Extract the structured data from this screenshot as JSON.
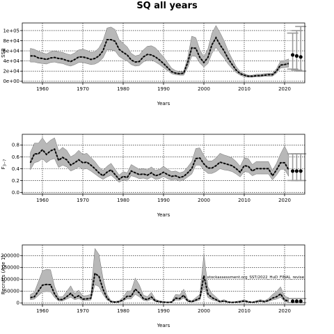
{
  "figure": {
    "title": "SQ all years"
  },
  "chart_data": [
    {
      "type": "line",
      "name": "ssb-panel",
      "xlabel": "Years",
      "ylabel": "SSB",
      "xlim": [
        1955,
        2025
      ],
      "ylim": [
        -3000,
        115000
      ],
      "x_ticks": [
        1960,
        1970,
        1980,
        1990,
        2000,
        2010,
        2020
      ],
      "y_ticks": [
        0,
        20000,
        40000,
        60000,
        80000,
        100000
      ],
      "y_tick_labels": [
        "0e+00",
        "2e+04",
        "4e+04",
        "6e+04",
        "8e+04",
        "1e+05"
      ],
      "grid": true,
      "x": [
        1957,
        1958,
        1959,
        1960,
        1961,
        1962,
        1963,
        1964,
        1965,
        1966,
        1967,
        1968,
        1969,
        1970,
        1971,
        1972,
        1973,
        1974,
        1975,
        1976,
        1977,
        1978,
        1979,
        1980,
        1981,
        1982,
        1983,
        1984,
        1985,
        1986,
        1987,
        1988,
        1989,
        1990,
        1991,
        1992,
        1993,
        1994,
        1995,
        1996,
        1997,
        1998,
        1999,
        2000,
        2001,
        2002,
        2003,
        2004,
        2005,
        2006,
        2007,
        2008,
        2009,
        2010,
        2011,
        2012,
        2013,
        2014,
        2015,
        2016,
        2017,
        2018,
        2019,
        2020,
        2021
      ],
      "median": [
        50000,
        50000,
        46000,
        45000,
        43000,
        46000,
        47000,
        45000,
        44000,
        41000,
        39000,
        43000,
        48000,
        48000,
        46000,
        43000,
        45000,
        50000,
        60000,
        82000,
        82000,
        79000,
        63000,
        57000,
        52000,
        42000,
        38000,
        39000,
        48000,
        53000,
        52000,
        48000,
        42000,
        35000,
        27000,
        19000,
        16000,
        15000,
        16000,
        37000,
        66000,
        65000,
        47000,
        37000,
        47000,
        72000,
        86000,
        72000,
        60000,
        45000,
        33000,
        22000,
        15000,
        12000,
        10000,
        10000,
        11000,
        11000,
        12000,
        13000,
        13000,
        20000,
        32000,
        33000,
        35000
      ],
      "lower": [
        38000,
        38000,
        36000,
        35000,
        34000,
        37000,
        38000,
        36000,
        35000,
        32000,
        30000,
        33000,
        37000,
        37000,
        35000,
        33000,
        34000,
        38000,
        46000,
        62000,
        62000,
        60000,
        49000,
        44000,
        40000,
        33000,
        30000,
        31000,
        38000,
        42000,
        42000,
        38000,
        33000,
        27000,
        21000,
        15000,
        13000,
        12000,
        12000,
        27000,
        50000,
        49000,
        36000,
        28000,
        35000,
        55000,
        67000,
        56000,
        46000,
        34000,
        25000,
        17000,
        12000,
        9000,
        8000,
        8000,
        9000,
        9000,
        10000,
        10000,
        10000,
        16000,
        26000,
        27000,
        28000
      ],
      "upper": [
        65000,
        63000,
        59000,
        56000,
        54000,
        58000,
        60000,
        58000,
        57000,
        54000,
        52000,
        56000,
        62000,
        63000,
        61000,
        57000,
        58000,
        66000,
        80000,
        105000,
        107000,
        102000,
        82000,
        75000,
        68000,
        55000,
        50000,
        52000,
        62000,
        69000,
        70000,
        66000,
        57000,
        48000,
        37000,
        26000,
        21000,
        19000,
        20000,
        47000,
        89000,
        86000,
        62000,
        48000,
        64000,
        95000,
        110000,
        96000,
        80000,
        60000,
        44000,
        29000,
        19000,
        15000,
        12000,
        12000,
        14000,
        14000,
        15000,
        16000,
        16000,
        25000,
        40000,
        41000,
        44000
      ],
      "projection": {
        "x": [
          2022,
          2023,
          2024
        ],
        "median": [
          52000,
          50000,
          48000
        ],
        "lower": [
          24000,
          22000,
          20000
        ],
        "upper": [
          95000,
          100000,
          108000
        ]
      }
    },
    {
      "type": "line",
      "name": "f-panel",
      "xlabel": "Years",
      "ylabel": "F3-7",
      "ylabel_base": "F",
      "ylabel_sub": "3−7",
      "xlim": [
        1955,
        2025
      ],
      "ylim": [
        -0.03,
        0.98
      ],
      "x_ticks": [
        1960,
        1970,
        1980,
        1990,
        2000,
        2010,
        2020
      ],
      "y_ticks": [
        0.0,
        0.2,
        0.4,
        0.6,
        0.8
      ],
      "y_tick_labels": [
        "0.0",
        "0.2",
        "0.4",
        "0.6",
        "0.8"
      ],
      "grid": true,
      "x": [
        1957,
        1958,
        1959,
        1960,
        1961,
        1962,
        1963,
        1964,
        1965,
        1966,
        1967,
        1968,
        1969,
        1970,
        1971,
        1972,
        1973,
        1974,
        1975,
        1976,
        1977,
        1978,
        1979,
        1980,
        1981,
        1982,
        1983,
        1984,
        1985,
        1986,
        1987,
        1988,
        1989,
        1990,
        1991,
        1992,
        1993,
        1994,
        1995,
        1996,
        1997,
        1998,
        1999,
        2000,
        2001,
        2002,
        2003,
        2004,
        2005,
        2006,
        2007,
        2008,
        2009,
        2010,
        2011,
        2012,
        2013,
        2014,
        2015,
        2016,
        2017,
        2018,
        2019,
        2020,
        2021
      ],
      "median": [
        0.5,
        0.65,
        0.65,
        0.72,
        0.64,
        0.7,
        0.73,
        0.54,
        0.59,
        0.55,
        0.46,
        0.5,
        0.55,
        0.5,
        0.51,
        0.46,
        0.4,
        0.33,
        0.28,
        0.34,
        0.38,
        0.3,
        0.22,
        0.27,
        0.25,
        0.36,
        0.33,
        0.3,
        0.31,
        0.29,
        0.33,
        0.28,
        0.3,
        0.34,
        0.3,
        0.27,
        0.28,
        0.25,
        0.27,
        0.33,
        0.4,
        0.57,
        0.58,
        0.48,
        0.41,
        0.41,
        0.45,
        0.51,
        0.49,
        0.47,
        0.45,
        0.4,
        0.34,
        0.45,
        0.44,
        0.36,
        0.4,
        0.4,
        0.4,
        0.4,
        0.28,
        0.38,
        0.5,
        0.5,
        0.38
      ],
      "lower": [
        0.38,
        0.5,
        0.52,
        0.57,
        0.5,
        0.55,
        0.57,
        0.42,
        0.46,
        0.43,
        0.36,
        0.39,
        0.43,
        0.39,
        0.4,
        0.36,
        0.31,
        0.26,
        0.22,
        0.26,
        0.29,
        0.23,
        0.17,
        0.21,
        0.19,
        0.28,
        0.26,
        0.23,
        0.24,
        0.22,
        0.26,
        0.22,
        0.23,
        0.27,
        0.23,
        0.21,
        0.22,
        0.19,
        0.21,
        0.26,
        0.31,
        0.46,
        0.46,
        0.38,
        0.32,
        0.32,
        0.35,
        0.4,
        0.38,
        0.37,
        0.35,
        0.31,
        0.26,
        0.35,
        0.34,
        0.28,
        0.31,
        0.31,
        0.31,
        0.31,
        0.21,
        0.29,
        0.39,
        0.39,
        0.27
      ],
      "upper": [
        0.67,
        0.83,
        0.83,
        0.92,
        0.82,
        0.88,
        0.92,
        0.7,
        0.76,
        0.71,
        0.6,
        0.64,
        0.71,
        0.64,
        0.66,
        0.59,
        0.52,
        0.43,
        0.37,
        0.44,
        0.49,
        0.39,
        0.29,
        0.35,
        0.33,
        0.47,
        0.43,
        0.39,
        0.4,
        0.38,
        0.43,
        0.37,
        0.39,
        0.44,
        0.39,
        0.35,
        0.36,
        0.33,
        0.35,
        0.43,
        0.52,
        0.74,
        0.75,
        0.62,
        0.53,
        0.53,
        0.58,
        0.66,
        0.63,
        0.61,
        0.58,
        0.52,
        0.44,
        0.58,
        0.57,
        0.47,
        0.52,
        0.52,
        0.52,
        0.52,
        0.37,
        0.49,
        0.65,
        0.78,
        0.64
      ],
      "projection": {
        "x": [
          2022,
          2023,
          2024
        ],
        "median": [
          0.36,
          0.36,
          0.36
        ],
        "lower": [
          0.2,
          0.2,
          0.2
        ],
        "upper": [
          0.65,
          0.65,
          0.65
        ]
      }
    },
    {
      "type": "line",
      "name": "recruitment-panel",
      "xlabel": "Years",
      "ylabel": "Recruits (Age 1)",
      "xlim": [
        1955,
        2025
      ],
      "ylim": [
        -8000,
        245000
      ],
      "x_ticks": [
        1960,
        1970,
        1980,
        1990,
        2000,
        2010,
        2020
      ],
      "y_ticks": [
        0,
        50000,
        100000,
        150000,
        200000
      ],
      "y_tick_labels": [
        "0",
        "50000",
        "100000",
        "150000",
        "200000"
      ],
      "grid": true,
      "annotation": "stockassessment.org_SST/2022_HuD_FINAL_revise",
      "x": [
        1957,
        1958,
        1959,
        1960,
        1961,
        1962,
        1963,
        1964,
        1965,
        1966,
        1967,
        1968,
        1969,
        1970,
        1971,
        1972,
        1973,
        1974,
        1975,
        1976,
        1977,
        1978,
        1979,
        1980,
        1981,
        1982,
        1983,
        1984,
        1985,
        1986,
        1987,
        1988,
        1989,
        1990,
        1991,
        1992,
        1993,
        1994,
        1995,
        1996,
        1997,
        1998,
        1999,
        2000,
        2001,
        2002,
        2003,
        2004,
        2005,
        2006,
        2007,
        2008,
        2009,
        2010,
        2011,
        2012,
        2013,
        2014,
        2015,
        2016,
        2017,
        2018,
        2019,
        2020,
        2021
      ],
      "median": [
        22000,
        26000,
        50000,
        75000,
        78000,
        77000,
        38000,
        14000,
        14000,
        26000,
        40000,
        22000,
        30000,
        16000,
        17000,
        20000,
        125000,
        112000,
        58000,
        20000,
        5000,
        3000,
        5000,
        13000,
        28000,
        28000,
        58000,
        42000,
        18000,
        14000,
        25000,
        8000,
        5000,
        3000,
        2000,
        3000,
        20000,
        18000,
        32000,
        8000,
        5000,
        12000,
        20000,
        115000,
        38000,
        22000,
        14000,
        5000,
        8000,
        3000,
        2000,
        3000,
        5000,
        8000,
        4000,
        2000,
        5000,
        8000,
        5000,
        10000,
        20000,
        26000,
        38000,
        12000,
        8000
      ],
      "lower": [
        13000,
        16000,
        31000,
        46000,
        48000,
        47000,
        23000,
        8000,
        8000,
        16000,
        24000,
        13000,
        18000,
        10000,
        10000,
        12000,
        77000,
        69000,
        36000,
        12000,
        3000,
        2000,
        3000,
        8000,
        17000,
        17000,
        36000,
        26000,
        11000,
        8000,
        15000,
        5000,
        3000,
        2000,
        1000,
        2000,
        12000,
        11000,
        20000,
        5000,
        3000,
        7000,
        12000,
        70000,
        23000,
        13000,
        8000,
        3000,
        5000,
        2000,
        1000,
        2000,
        3000,
        5000,
        2000,
        1000,
        3000,
        5000,
        3000,
        6000,
        12000,
        16000,
        23000,
        6000,
        3000
      ],
      "upper": [
        35000,
        45000,
        90000,
        135000,
        142000,
        140000,
        70000,
        25000,
        26000,
        48000,
        72000,
        40000,
        54000,
        29000,
        31000,
        36000,
        230000,
        205000,
        105000,
        36000,
        9000,
        6000,
        9000,
        24000,
        50000,
        51000,
        105000,
        76000,
        33000,
        26000,
        45000,
        15000,
        9000,
        6000,
        4000,
        6000,
        36000,
        33000,
        58000,
        15000,
        9000,
        22000,
        36000,
        205000,
        68000,
        40000,
        25000,
        9000,
        14000,
        6000,
        4000,
        6000,
        9000,
        14000,
        7000,
        4000,
        9000,
        14000,
        9000,
        18000,
        36000,
        48000,
        68000,
        28000,
        22000
      ],
      "projection": {
        "x": [
          2022,
          2023,
          2024
        ],
        "median": [
          7000,
          7000,
          7000
        ],
        "lower": [
          1000,
          1000,
          1000
        ],
        "upper": [
          18000,
          18000,
          18000
        ]
      }
    }
  ]
}
